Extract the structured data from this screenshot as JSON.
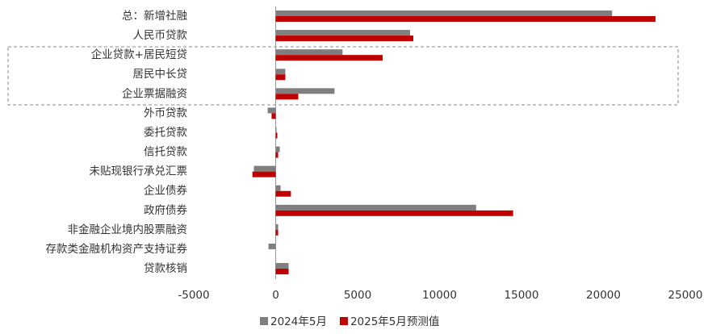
{
  "chart_data": {
    "type": "bar",
    "orientation": "horizontal",
    "categories": [
      "总：新增社融",
      "人民币贷款",
      "企业贷款+居民短贷",
      "居民中长贷",
      "企业票据融资",
      "外币贷款",
      "委托贷款",
      "信托贷款",
      "未贴现银行承兑汇票",
      "企业债券",
      "政府债券",
      "非金融企业境内股票融资",
      "存款类金融机构资产支持证券",
      "贷款核销"
    ],
    "series": [
      {
        "name": "2024年5月",
        "color": "#7f7f7f",
        "values": [
          20530,
          8200,
          4080,
          590,
          3590,
          -490,
          50,
          250,
          -1330,
          300,
          12230,
          150,
          -440,
          790
        ]
      },
      {
        "name": "2025年5月预测值",
        "color": "#c00000",
        "values": [
          23180,
          8400,
          6530,
          590,
          1380,
          -250,
          100,
          150,
          -1420,
          930,
          14490,
          150,
          0,
          790
        ]
      }
    ],
    "xlim": [
      -5000,
      25000
    ],
    "xticks": [
      -5000,
      0,
      5000,
      10000,
      15000,
      20000,
      25000
    ],
    "legend": "bottom"
  }
}
